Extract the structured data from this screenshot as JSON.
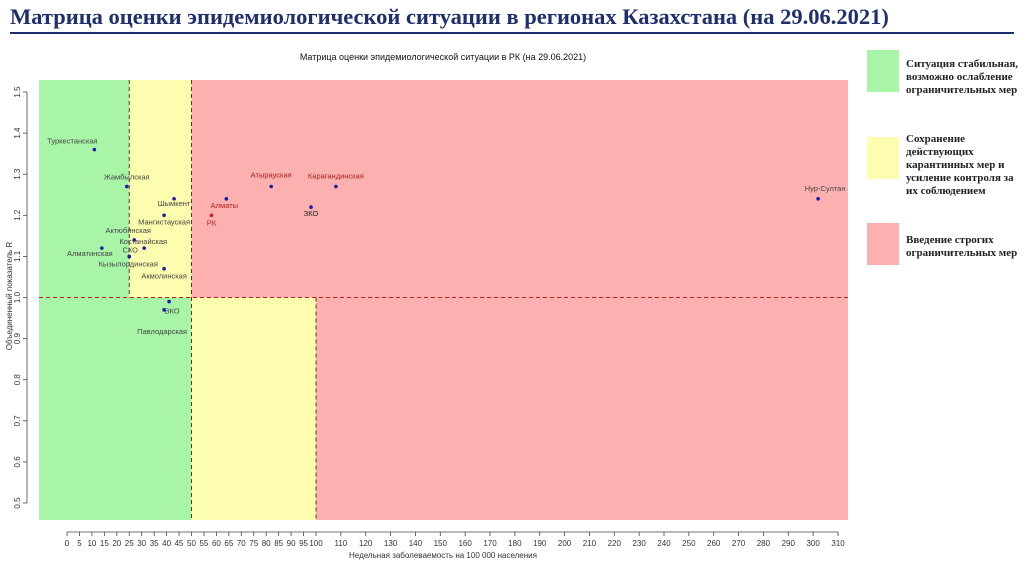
{
  "slide_title": "Матрица оценки эпидемиологической ситуации в регионах Казахстана (на 29.06.2021)",
  "legend": [
    {
      "color": "#a8f5a8",
      "text": "Ситуация стабильная, возможно ослабление ограничительных мер"
    },
    {
      "color": "#fdfdb0",
      "text": "Сохранение действующих карантинных мер и усиление контроля за их соблюдением"
    },
    {
      "color": "#fcb0b0",
      "text": "Введение строгих ограничительных мер"
    }
  ],
  "chart_data": {
    "type": "scatter",
    "title": "Матрица оценки эпидемиологической ситуации в РК (на 29.06.2021)",
    "xlabel": "Недельная заболеваемость на 100 000 населения",
    "ylabel": "Объединенный показатель R",
    "xlim": [
      -15,
      315
    ],
    "ylim": [
      0.45,
      1.55
    ],
    "x_ticks": [
      0,
      5,
      10,
      15,
      20,
      25,
      30,
      35,
      40,
      45,
      50,
      55,
      60,
      65,
      70,
      75,
      80,
      85,
      90,
      95,
      100,
      110,
      120,
      130,
      140,
      150,
      160,
      170,
      180,
      190,
      200,
      210,
      220,
      230,
      240,
      250,
      260,
      270,
      280,
      290,
      300,
      310
    ],
    "y_ticks": [
      0.5,
      0.6,
      0.7,
      0.8,
      0.9,
      1.0,
      1.1,
      1.2,
      1.3,
      1.4,
      1.5
    ],
    "threshold_y": 1.0,
    "zones": [
      {
        "color": "#a8f5a8",
        "x0": -15,
        "x1": 25,
        "y0": 1.0,
        "y1": 1.55
      },
      {
        "color": "#fdfdb0",
        "x0": 25,
        "x1": 50,
        "y0": 1.0,
        "y1": 1.55
      },
      {
        "color": "#fcb0b0",
        "x0": 50,
        "x1": 315,
        "y0": 1.0,
        "y1": 1.55
      },
      {
        "color": "#a8f5a8",
        "x0": -15,
        "x1": 50,
        "y0": 0.45,
        "y1": 1.0
      },
      {
        "color": "#fdfdb0",
        "x0": 50,
        "x1": 100,
        "y0": 0.45,
        "y1": 1.0
      },
      {
        "color": "#fcb0b0",
        "x0": 100,
        "x1": 315,
        "y0": 0.45,
        "y1": 1.0
      }
    ],
    "vertical_lines": [
      {
        "x": 25,
        "y0": 1.0,
        "y1": 1.55
      },
      {
        "x": 50,
        "y0": 0.45,
        "y1": 1.55
      },
      {
        "x": 100,
        "y0": 0.45,
        "y1": 1.0
      }
    ],
    "points": [
      {
        "label": "Туркестанская",
        "x": 11,
        "y": 1.36,
        "color": "#1a1aa8",
        "color_label": "#444444"
      },
      {
        "label": "Жамбылская",
        "x": 24,
        "y": 1.27,
        "color": "#1a1aa8",
        "color_label": "#444444"
      },
      {
        "label": "Шымкент",
        "x": 43,
        "y": 1.24,
        "color": "#1a1aa8",
        "color_label": "#444444"
      },
      {
        "label": "Мангистауская",
        "x": 39,
        "y": 1.2,
        "color": "#1a1aa8",
        "color_label": "#444444"
      },
      {
        "label": "Актюбинская",
        "x": 27,
        "y": 1.14,
        "color": "#1a1aa8",
        "color_label": "#444444"
      },
      {
        "label": "СКО",
        "x": 25,
        "y": 1.1,
        "color": "#1a1aa8",
        "color_label": "#444444"
      },
      {
        "label": "Костанайская",
        "x": 31,
        "y": 1.12,
        "color": "#1a1aa8",
        "color_label": "#444444"
      },
      {
        "label": "Алматинская",
        "x": 14,
        "y": 1.12,
        "color": "#1a1aa8",
        "color_label": "#444444"
      },
      {
        "label": "Кызылординская",
        "x": 25,
        "y": 1.1,
        "color": "#1a1aa8",
        "color_label": "#444444"
      },
      {
        "label": "Акмолинская",
        "x": 39,
        "y": 1.07,
        "color": "#1a1aa8",
        "color_label": "#444444"
      },
      {
        "label": "ВКО",
        "x": 41,
        "y": 0.99,
        "color": "#1a1aa8",
        "color_label": "#444444"
      },
      {
        "label": "Павлодарская",
        "x": 39,
        "y": 0.97,
        "color": "#1a1aa8",
        "color_label": "#444444"
      },
      {
        "label": "Алматы",
        "x": 64,
        "y": 1.24,
        "color": "#1a1aa8",
        "color_label": "#b02020"
      },
      {
        "label": "РК",
        "x": 58,
        "y": 1.2,
        "color": "#d02020",
        "color_label": "#b02020"
      },
      {
        "label": "Атырауская",
        "x": 82,
        "y": 1.27,
        "color": "#1a1aa8",
        "color_label": "#b02020"
      },
      {
        "label": "Карагандинская",
        "x": 108,
        "y": 1.27,
        "color": "#1a1aa8",
        "color_label": "#b02020"
      },
      {
        "label": "ЗКО",
        "x": 98,
        "y": 1.22,
        "color": "#1a1aa8",
        "color_label": "#222222"
      },
      {
        "label": "Нур-Султан",
        "x": 302,
        "y": 1.24,
        "color": "#1a1aa8",
        "color_label": "#444444"
      }
    ]
  }
}
